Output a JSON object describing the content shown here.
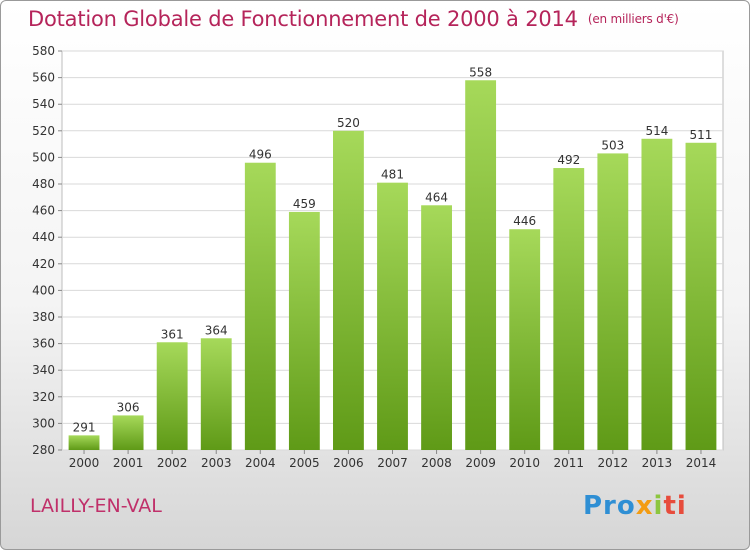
{
  "header": {
    "title": "Dotation Globale de Fonctionnement de 2000 à 2014",
    "unit": "(en milliers d'€)"
  },
  "footer": {
    "city": "LAILLY-EN-VAL",
    "logo": [
      "Pro",
      "x",
      "i",
      "ti"
    ]
  },
  "colors": {
    "title": "#b5245a",
    "bar_top": "#a6d95a",
    "bar_bottom": "#5f9a17",
    "grid": "#d9d9d9"
  },
  "chart_data": {
    "type": "bar",
    "categories": [
      "2000",
      "2001",
      "2002",
      "2003",
      "2004",
      "2005",
      "2006",
      "2007",
      "2008",
      "2009",
      "2010",
      "2011",
      "2012",
      "2013",
      "2014"
    ],
    "values": [
      291,
      306,
      361,
      364,
      496,
      459,
      520,
      481,
      464,
      558,
      446,
      492,
      503,
      514,
      511
    ],
    "title": "Dotation Globale de Fonctionnement de 2000 à 2014",
    "ylabel": "",
    "xlabel": "",
    "ylim": [
      280,
      580
    ],
    "yticks": [
      280,
      300,
      320,
      340,
      360,
      380,
      400,
      420,
      440,
      460,
      480,
      500,
      520,
      540,
      560,
      580
    ],
    "grid": true
  }
}
